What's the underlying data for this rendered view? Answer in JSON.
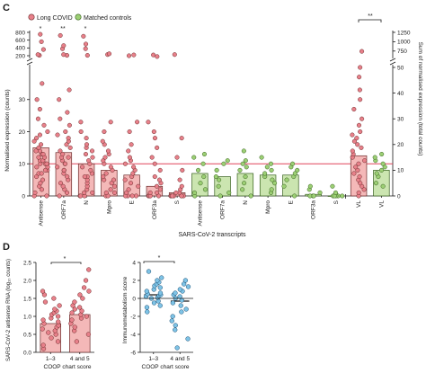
{
  "colors": {
    "long_covid_fill": "#e8808a",
    "long_covid_bar": "#f4b8b8",
    "long_covid_edge": "#6b2b2b",
    "control_fill": "#9ccf74",
    "control_bar": "#cbe5b0",
    "control_edge": "#355f1c",
    "blue_fill": "#7ec3e6",
    "blue_edge": "#1c4f73",
    "threshold_line": "#e0455a"
  },
  "panel_c": {
    "label": "C",
    "legend": [
      "Long COVID",
      "Matched controls"
    ],
    "title_x": "SARS-CoV-2 transcripts",
    "ylabel_left": "Normalised expression (counts)",
    "ylabel_right": "Sum of normalised expression (total counts)",
    "sig_long": [
      "*",
      "**",
      "*"
    ],
    "sig_vl": "**",
    "chart_data": {
      "type": "scatter",
      "categories": [
        "Antisense",
        "ORF7a",
        "N",
        "Mpro",
        "E",
        "ORF3a",
        "S",
        "Antisense",
        "ORF7a",
        "N",
        "Mpro",
        "E",
        "ORF3a",
        "S",
        "VL",
        "VL"
      ],
      "groups": [
        "Long COVID",
        "Long COVID",
        "Long COVID",
        "Long COVID",
        "Long COVID",
        "Long COVID",
        "Long COVID",
        "Matched controls",
        "Matched controls",
        "Matched controls",
        "Matched controls",
        "Matched controls",
        "Matched controls",
        "Matched controls",
        "Long COVID",
        "Matched controls"
      ],
      "bar_means": [
        15,
        13.5,
        10,
        8,
        6.5,
        3,
        1,
        7,
        6,
        7,
        6.5,
        6.5,
        0.5,
        0,
        12.5,
        8
      ],
      "y_left_ticks_lower": [
        0,
        10,
        20,
        30
      ],
      "y_left_ticks_upper": [
        200,
        400,
        600,
        800
      ],
      "y_right_ticks_upper": [
        750,
        1000,
        1250
      ],
      "y_right_ticks_lower": [
        0,
        10,
        20,
        30,
        40,
        50
      ],
      "threshold": 10,
      "points_upper": [
        [
          210,
          230,
          360,
          560,
          750
        ],
        [
          210,
          230,
          380,
          460,
          720
        ],
        [
          210,
          380,
          500,
          700
        ],
        [
          230,
          250
        ],
        [
          200,
          220
        ],
        [
          180,
          220
        ],
        [
          230
        ],
        [],
        [],
        [],
        [],
        [],
        [],
        [],
        [],
        []
      ],
      "points_lower": [
        [
          0,
          0,
          1,
          2,
          3,
          4,
          5,
          6,
          7,
          7,
          8,
          8,
          9,
          9,
          10,
          10,
          10,
          11,
          11,
          12,
          12,
          13,
          13,
          14,
          14,
          15,
          16,
          17,
          18,
          19,
          20,
          22,
          24,
          27,
          30,
          35
        ],
        [
          0,
          1,
          2,
          3,
          4,
          5,
          6,
          7,
          8,
          8,
          9,
          10,
          10,
          11,
          12,
          12,
          13,
          14,
          15,
          16,
          17,
          18,
          19,
          20,
          22,
          24,
          26,
          30,
          33
        ],
        [
          0,
          0,
          0,
          1,
          1,
          2,
          3,
          4,
          5,
          6,
          6,
          7,
          8,
          9,
          10,
          11,
          12,
          13,
          14,
          15,
          16,
          18,
          20,
          23
        ],
        [
          0,
          0,
          1,
          1,
          2,
          3,
          4,
          5,
          5,
          6,
          7,
          8,
          9,
          10,
          11,
          12,
          13,
          14,
          16,
          17,
          20,
          23
        ],
        [
          0,
          0,
          0,
          0,
          1,
          2,
          3,
          4,
          5,
          6,
          7,
          8,
          9,
          10,
          11,
          12,
          14,
          16,
          20,
          23
        ],
        [
          0,
          0,
          0,
          0,
          0,
          1,
          1,
          2,
          3,
          4,
          5,
          6,
          8,
          10,
          12,
          15,
          18,
          20,
          23
        ],
        [
          0,
          0,
          0,
          0,
          0,
          0,
          0,
          0,
          1,
          1,
          2,
          3,
          5,
          8,
          12,
          18
        ],
        [
          0,
          1,
          2,
          4,
          6,
          8,
          10,
          12,
          13
        ],
        [
          0,
          1,
          3,
          5,
          6,
          8,
          10,
          11
        ],
        [
          0,
          2,
          4,
          6,
          8,
          9,
          10,
          11,
          14
        ],
        [
          1,
          2,
          4,
          5,
          6,
          7,
          8,
          9,
          10,
          12
        ],
        [
          0,
          3,
          5,
          6,
          7,
          8,
          9,
          10
        ],
        [
          0,
          0,
          0,
          1,
          2,
          3
        ],
        [
          0,
          0,
          0,
          0,
          0,
          1,
          3
        ],
        [
          0,
          1,
          2,
          3,
          4,
          5,
          6,
          7,
          8,
          9,
          10,
          11,
          12,
          13,
          14,
          15,
          16,
          17,
          18,
          19,
          20,
          22,
          24,
          27,
          30,
          33,
          37,
          40,
          45
        ],
        [
          3,
          4,
          6,
          7,
          8,
          9,
          10,
          11,
          12,
          13
        ]
      ]
    }
  },
  "panel_d": {
    "label": "D",
    "left": {
      "ylabel": "SARS-CoV-2 antisense RNA (log₁₀ counts)",
      "xlabel": "COOP chart score",
      "sig": "*",
      "chart_data": {
        "type": "scatter",
        "categories": [
          "1–3",
          "4 and 5"
        ],
        "bar_means": [
          0.8,
          1.05
        ],
        "ylim": [
          0,
          2.5
        ],
        "yticks": [
          0,
          0.5,
          1.0,
          1.5,
          2.0,
          2.5
        ],
        "points": [
          [
            0.1,
            0.2,
            0.3,
            0.4,
            0.5,
            0.55,
            0.6,
            0.65,
            0.7,
            0.75,
            0.8,
            0.85,
            0.9,
            0.95,
            1.0,
            1.05,
            1.1,
            1.15,
            1.2,
            1.3,
            1.4,
            1.5,
            1.6,
            1.7
          ],
          [
            0.3,
            0.5,
            0.6,
            0.7,
            0.8,
            0.9,
            0.95,
            1.0,
            1.05,
            1.1,
            1.15,
            1.2,
            1.25,
            1.3,
            1.4,
            1.5,
            1.6,
            1.7,
            1.8,
            2.0,
            2.3
          ]
        ]
      }
    },
    "right": {
      "ylabel": "Immunometabolism score",
      "xlabel": "COOP chart score",
      "sig": "*",
      "chart_data": {
        "type": "scatter",
        "categories": [
          "1–3",
          "4 and 5"
        ],
        "bar_means": [
          0.4,
          -0.3
        ],
        "ylim": [
          -6,
          4
        ],
        "yticks": [
          -6,
          -4,
          -2,
          0,
          2,
          4
        ],
        "points": [
          [
            -1.5,
            -1.0,
            -0.8,
            -0.5,
            -0.3,
            0,
            0.1,
            0.2,
            0.3,
            0.4,
            0.5,
            0.6,
            0.8,
            1.0,
            1.2,
            1.4,
            1.6,
            1.8,
            2.0,
            2.3,
            3.0
          ],
          [
            -5.5,
            -4.5,
            -3.5,
            -3.0,
            -2.5,
            -2.0,
            -1.5,
            -1.2,
            -0.8,
            -0.5,
            -0.2,
            0,
            0.2,
            0.4,
            0.6,
            0.8,
            1.0,
            1.3,
            1.6,
            2.0
          ]
        ]
      }
    }
  }
}
